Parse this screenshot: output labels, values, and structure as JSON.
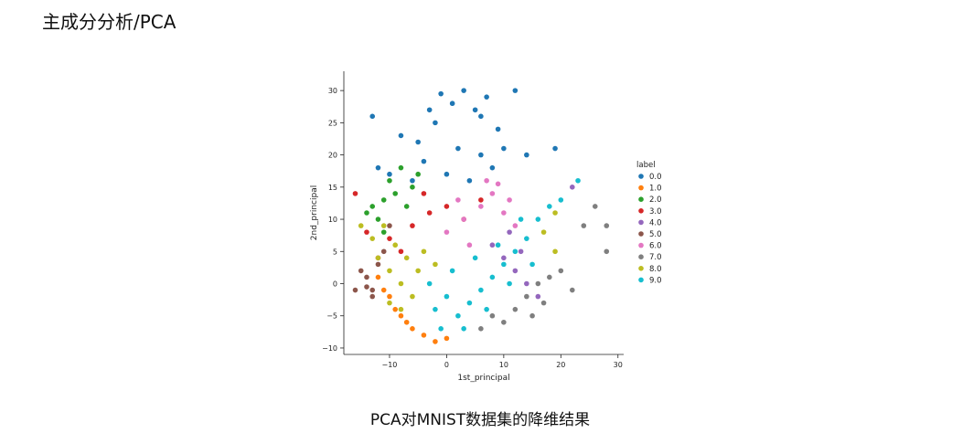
{
  "page": {
    "heading": "主成分分析/PCA",
    "caption": "PCA对MNIST数据集的降维结果"
  },
  "chart_data": {
    "type": "scatter",
    "xlabel": "1st_principal",
    "ylabel": "2nd_principal",
    "xlim": [
      -18,
      31
    ],
    "ylim": [
      -11,
      33
    ],
    "xticks": [
      -10,
      0,
      10,
      20,
      30
    ],
    "xtick_labels": [
      "−10",
      "0",
      "10",
      "20",
      "30"
    ],
    "yticks": [
      -10,
      -5,
      0,
      5,
      10,
      15,
      20,
      25,
      30
    ],
    "ytick_labels": [
      "−10",
      "−5",
      "0",
      "5",
      "10",
      "15",
      "20",
      "25",
      "30"
    ],
    "grid": false,
    "legend_position": "right",
    "legend_title": "label",
    "series": [
      {
        "name": "0.0",
        "color": "#1f77b4",
        "points": [
          [
            -5,
            22
          ],
          [
            -2,
            25
          ],
          [
            1,
            28
          ],
          [
            3,
            30
          ],
          [
            5,
            27
          ],
          [
            7,
            29
          ],
          [
            9,
            24
          ],
          [
            12,
            30
          ],
          [
            -13,
            26
          ],
          [
            -8,
            23
          ],
          [
            -4,
            19
          ],
          [
            2,
            21
          ],
          [
            6,
            20
          ],
          [
            8,
            18
          ],
          [
            10,
            21
          ],
          [
            14,
            20
          ],
          [
            19,
            21
          ],
          [
            -10,
            17
          ],
          [
            -12,
            18
          ],
          [
            -6,
            16
          ],
          [
            0,
            17
          ],
          [
            4,
            16
          ],
          [
            -1,
            29.5
          ],
          [
            6,
            26
          ],
          [
            -3,
            27
          ]
        ]
      },
      {
        "name": "1.0",
        "color": "#ff7f0e",
        "points": [
          [
            -10,
            -2
          ],
          [
            -9,
            -4
          ],
          [
            -8,
            -5
          ],
          [
            -6,
            -7
          ],
          [
            -4,
            -8
          ],
          [
            -2,
            -9
          ],
          [
            0,
            -8.5
          ],
          [
            -12,
            1
          ],
          [
            -11,
            -1
          ],
          [
            -7,
            -6
          ]
        ]
      },
      {
        "name": "2.0",
        "color": "#2ca02c",
        "points": [
          [
            -13,
            12
          ],
          [
            -11,
            13
          ],
          [
            -9,
            14
          ],
          [
            -7,
            12
          ],
          [
            -12,
            10
          ],
          [
            -10,
            16
          ],
          [
            -8,
            18
          ],
          [
            -6,
            15
          ],
          [
            -14,
            11
          ],
          [
            -5,
            17
          ],
          [
            -11,
            8
          ]
        ]
      },
      {
        "name": "3.0",
        "color": "#d62728",
        "points": [
          [
            -16,
            14
          ],
          [
            -14,
            8
          ],
          [
            -10,
            7
          ],
          [
            -6,
            9
          ],
          [
            -3,
            11
          ],
          [
            0,
            12
          ],
          [
            3,
            10
          ],
          [
            6,
            13
          ],
          [
            -8,
            5
          ],
          [
            -12,
            4
          ],
          [
            -4,
            14
          ]
        ]
      },
      {
        "name": "4.0",
        "color": "#9467bd",
        "points": [
          [
            8,
            6
          ],
          [
            10,
            4
          ],
          [
            12,
            2
          ],
          [
            14,
            0
          ],
          [
            16,
            -2
          ],
          [
            11,
            8
          ],
          [
            13,
            5
          ],
          [
            22,
            15
          ]
        ]
      },
      {
        "name": "5.0",
        "color": "#8c564b",
        "points": [
          [
            -14,
            1
          ],
          [
            -13,
            -1
          ],
          [
            -12,
            3
          ],
          [
            -11,
            5
          ],
          [
            -15,
            2
          ],
          [
            -10,
            9
          ],
          [
            -13,
            -2
          ],
          [
            -14,
            -0.5
          ],
          [
            -16,
            -1
          ]
        ]
      },
      {
        "name": "6.0",
        "color": "#e377c2",
        "points": [
          [
            0,
            8
          ],
          [
            3,
            10
          ],
          [
            6,
            12
          ],
          [
            8,
            14
          ],
          [
            10,
            11
          ],
          [
            12,
            9
          ],
          [
            4,
            6
          ],
          [
            7,
            16
          ],
          [
            9,
            15.5
          ],
          [
            11,
            13
          ],
          [
            2,
            13
          ]
        ]
      },
      {
        "name": "7.0",
        "color": "#7f7f7f",
        "points": [
          [
            10,
            -6
          ],
          [
            12,
            -4
          ],
          [
            14,
            -2
          ],
          [
            16,
            0
          ],
          [
            18,
            1
          ],
          [
            20,
            2
          ],
          [
            22,
            -1
          ],
          [
            6,
            -7
          ],
          [
            8,
            -5
          ],
          [
            24,
            9
          ],
          [
            26,
            12
          ],
          [
            28,
            9
          ],
          [
            28,
            5
          ],
          [
            17,
            -3
          ],
          [
            15,
            -5
          ]
        ]
      },
      {
        "name": "8.0",
        "color": "#bcbd22",
        "points": [
          [
            -12,
            4
          ],
          [
            -10,
            2
          ],
          [
            -8,
            0
          ],
          [
            -6,
            -2
          ],
          [
            -10,
            -3
          ],
          [
            -9,
            6
          ],
          [
            -7,
            4
          ],
          [
            -5,
            2
          ],
          [
            -13,
            7
          ],
          [
            -11,
            9
          ],
          [
            -15,
            9
          ],
          [
            -8,
            -4
          ],
          [
            -4,
            5
          ],
          [
            -2,
            3
          ],
          [
            17,
            8
          ],
          [
            19,
            11
          ],
          [
            19,
            5
          ]
        ]
      },
      {
        "name": "9.0",
        "color": "#17becf",
        "points": [
          [
            -2,
            -4
          ],
          [
            0,
            -2
          ],
          [
            2,
            -5
          ],
          [
            4,
            -3
          ],
          [
            6,
            -1
          ],
          [
            8,
            1
          ],
          [
            10,
            3
          ],
          [
            12,
            5
          ],
          [
            14,
            7
          ],
          [
            16,
            10
          ],
          [
            18,
            12
          ],
          [
            20,
            13
          ],
          [
            23,
            16
          ],
          [
            -1,
            -7
          ],
          [
            3,
            -7
          ],
          [
            7,
            -4
          ],
          [
            11,
            0
          ],
          [
            15,
            3
          ],
          [
            -3,
            0
          ],
          [
            1,
            2
          ],
          [
            5,
            4
          ],
          [
            9,
            6
          ],
          [
            13,
            10
          ]
        ]
      }
    ]
  }
}
